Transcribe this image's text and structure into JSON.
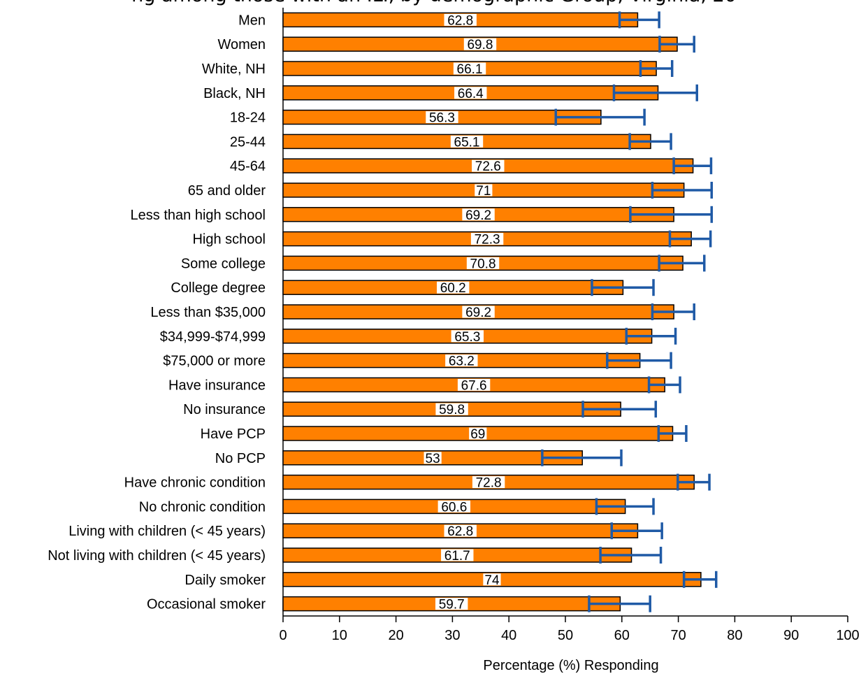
{
  "chart_data": {
    "type": "bar",
    "orientation": "horizontal",
    "title": "ng among those with an ILI, by demographic Group, Virginia, 20",
    "xlabel": "Percentage (%) Responding",
    "ylabel": "",
    "xlim": [
      0,
      100
    ],
    "x_ticks": [
      "0",
      "10",
      "20",
      "30",
      "40",
      "50",
      "60",
      "70",
      "80",
      "90",
      "100"
    ],
    "grid": false,
    "legend": "none",
    "colors": {
      "bar": "#FF8000",
      "bar_edge": "#000000",
      "error_bar": "#1F5AA6",
      "label_bg": "#ffffff"
    },
    "categories": [
      "Men",
      "Women",
      "White, NH",
      "Black, NH",
      "18-24",
      "25-44",
      "45-64",
      "65 and older",
      "Less than high school",
      "High school",
      "Some college",
      "College degree",
      "Less than $35,000",
      "$34,999-$74,999",
      "$75,000 or more",
      "Have insurance",
      "No insurance",
      "Have PCP",
      "No PCP",
      "Have chronic condition",
      "No chronic condition",
      "Living with children (< 45 years)",
      "Not living with children (< 45 years)",
      "Daily smoker",
      "Occasional smoker"
    ],
    "values": [
      62.8,
      69.8,
      66.1,
      66.4,
      56.3,
      65.1,
      72.6,
      71,
      69.2,
      72.3,
      70.8,
      60.2,
      69.2,
      65.3,
      63.2,
      67.6,
      59.8,
      69,
      53,
      72.8,
      60.6,
      62.8,
      61.7,
      74,
      59.7
    ],
    "value_labels": [
      "62.8",
      "69.8",
      "66.1",
      "66.4",
      "56.3",
      "65.1",
      "72.6",
      "71",
      "69.2",
      "72.3",
      "70.8",
      "60.2",
      "69.2",
      "65.3",
      "63.2",
      "67.6",
      "59.8",
      "69",
      "53",
      "72.8",
      "60.6",
      "62.8",
      "61.7",
      "74",
      "59.7"
    ],
    "error_low": [
      59.6,
      66.7,
      63.3,
      58.6,
      48.3,
      61.4,
      69.2,
      65.4,
      61.5,
      68.5,
      66.6,
      54.7,
      65.4,
      60.8,
      57.4,
      64.8,
      53.1,
      66.5,
      45.9,
      69.9,
      55.5,
      58.2,
      56.2,
      71.0,
      54.2
    ],
    "error_high": [
      66.6,
      72.8,
      68.9,
      73.3,
      64.0,
      68.7,
      75.8,
      75.9,
      75.9,
      75.7,
      74.6,
      65.6,
      72.8,
      69.5,
      68.7,
      70.3,
      66.0,
      71.4,
      59.9,
      75.5,
      65.6,
      67.1,
      66.9,
      76.7,
      65.0
    ]
  }
}
